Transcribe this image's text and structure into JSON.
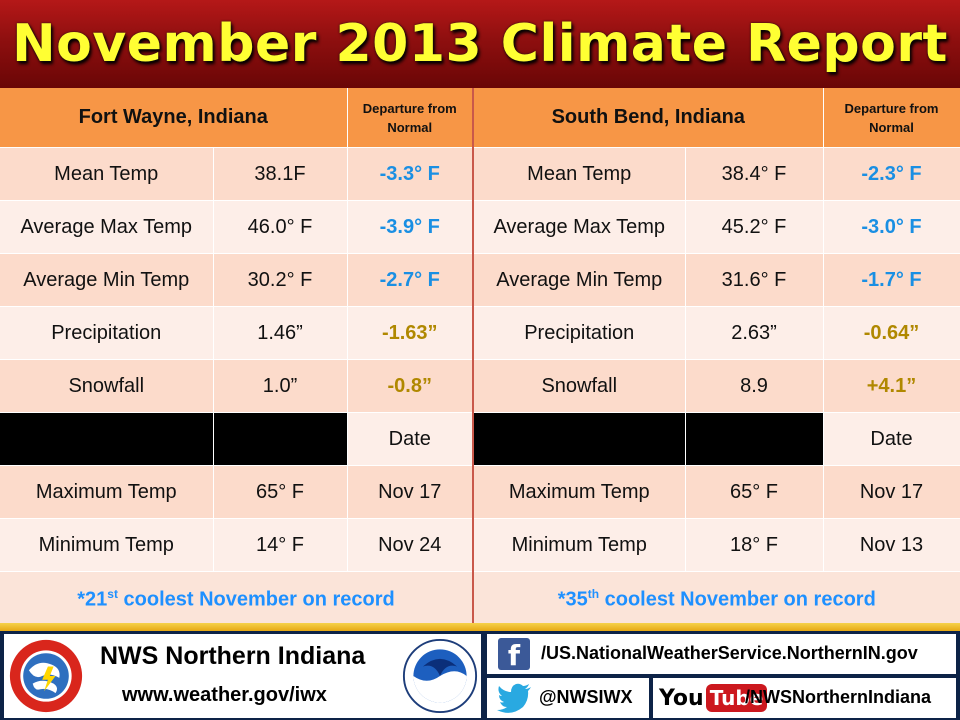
{
  "title": "November 2013 Climate Report",
  "left": {
    "station": "Fort Wayne, Indiana",
    "departure_header": "Departure from Normal",
    "rows": [
      {
        "label": "Mean Temp",
        "value": "38.1F",
        "departure": "-3.3° F"
      },
      {
        "label": "Average Max Temp",
        "value": "46.0° F",
        "departure": "-3.9° F"
      },
      {
        "label": "Average Min Temp",
        "value": "30.2° F",
        "departure": "-2.7° F"
      },
      {
        "label": "Precipitation",
        "value": "1.46”",
        "departure": "-1.63”"
      },
      {
        "label": "Snowfall",
        "value": "1.0”",
        "departure": "-0.8”"
      }
    ],
    "date_header": "Date",
    "extremes": [
      {
        "label": "Maximum Temp",
        "value": "65° F",
        "date": "Nov 17"
      },
      {
        "label": "Minimum Temp",
        "value": "14° F",
        "date": "Nov 24"
      }
    ],
    "rank_number": "*21",
    "rank_suffix": "st",
    "rank_text": " coolest November on record"
  },
  "right": {
    "station": "South Bend, Indiana",
    "departure_header": "Departure from Normal",
    "rows": [
      {
        "label": "Mean Temp",
        "value": "38.4° F",
        "departure": "-2.3° F"
      },
      {
        "label": "Average Max Temp",
        "value": "45.2° F",
        "departure": "-3.0° F"
      },
      {
        "label": "Average Min Temp",
        "value": "31.6° F",
        "departure": "-1.7° F"
      },
      {
        "label": "Precipitation",
        "value": "2.63”",
        "departure": "-0.64”"
      },
      {
        "label": "Snowfall",
        "value": "8.9",
        "departure": "+4.1”"
      }
    ],
    "date_header": "Date",
    "extremes": [
      {
        "label": "Maximum Temp",
        "value": "65° F",
        "date": "Nov 17"
      },
      {
        "label": "Minimum Temp",
        "value": "18° F",
        "date": "Nov 13"
      }
    ],
    "rank_number": "*35",
    "rank_suffix": "th",
    "rank_text": " coolest November on record"
  },
  "footer": {
    "org_name": "NWS Northern Indiana",
    "website": "www.weather.gov/iwx",
    "facebook": "/US.NationalWeatherService.NorthernIN.gov",
    "twitter": "@NWSIWX",
    "youtube": "/NWSNorthernIndiana",
    "youtube_logo_you": "You",
    "youtube_logo_tube": "Tube",
    "facebook_glyph": "f"
  },
  "colors": {
    "title_text": "#ffff33",
    "title_bg": "#8e0f0f",
    "header_bg": "#f79646",
    "departure_temp": "#1a8fe3",
    "departure_precip": "#b08800",
    "footer_bg": "#0d2347"
  },
  "icons": {
    "nws_logo": "nws-logo-icon",
    "noaa_logo": "noaa-logo-icon",
    "facebook": "facebook-icon",
    "twitter": "twitter-bird-icon",
    "youtube": "youtube-logo-icon"
  }
}
